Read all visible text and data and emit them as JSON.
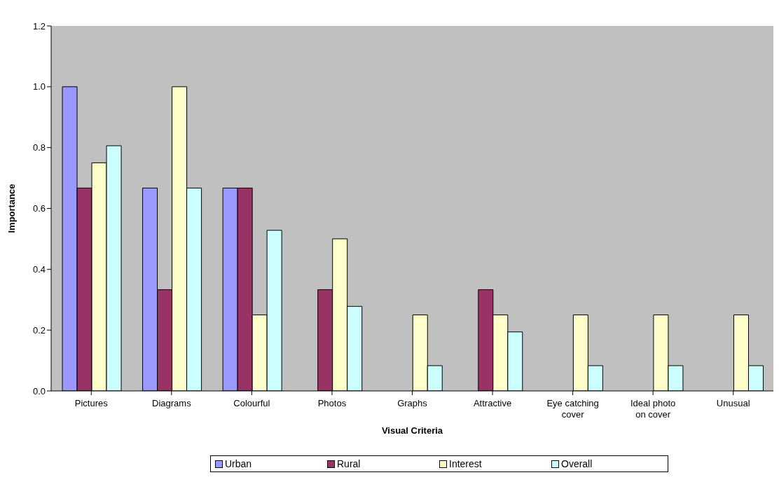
{
  "chart_data": {
    "type": "bar",
    "xlabel": "Visual Criteria",
    "ylabel": "Importance",
    "categories": [
      "Pictures",
      "Diagrams",
      "Colourful",
      "Photos",
      "Graphs",
      "Attractive",
      "Eye catching cover",
      "Ideal photo on cover",
      "Unusual"
    ],
    "series": [
      {
        "name": "Urban",
        "color": "#9999ff",
        "values": [
          1.0,
          0.667,
          0.667,
          0,
          0,
          0,
          0,
          0,
          0
        ]
      },
      {
        "name": "Rural",
        "color": "#993366",
        "values": [
          0.667,
          0.333,
          0.667,
          0.333,
          0,
          0.333,
          0,
          0,
          0
        ]
      },
      {
        "name": "Interest",
        "color": "#ffffcc",
        "values": [
          0.75,
          1.0,
          0.25,
          0.5,
          0.25,
          0.25,
          0.25,
          0.25,
          0.25
        ]
      },
      {
        "name": "Overall",
        "color": "#ccffff",
        "values": [
          0.806,
          0.667,
          0.528,
          0.278,
          0.083,
          0.194,
          0.083,
          0.083,
          0.083
        ]
      }
    ],
    "ylim": [
      0,
      1.2
    ],
    "yticks": [
      {
        "value": 0,
        "label": "0.0"
      },
      {
        "value": 0.2,
        "label": "0.2"
      },
      {
        "value": 0.4,
        "label": "0.4"
      },
      {
        "value": 0.6,
        "label": "0.6"
      },
      {
        "value": 0.8,
        "label": "0.8"
      },
      {
        "value": 1.0,
        "label": "1.0"
      },
      {
        "value": 1.2,
        "label": "1.2"
      }
    ],
    "legend": "bottom"
  }
}
